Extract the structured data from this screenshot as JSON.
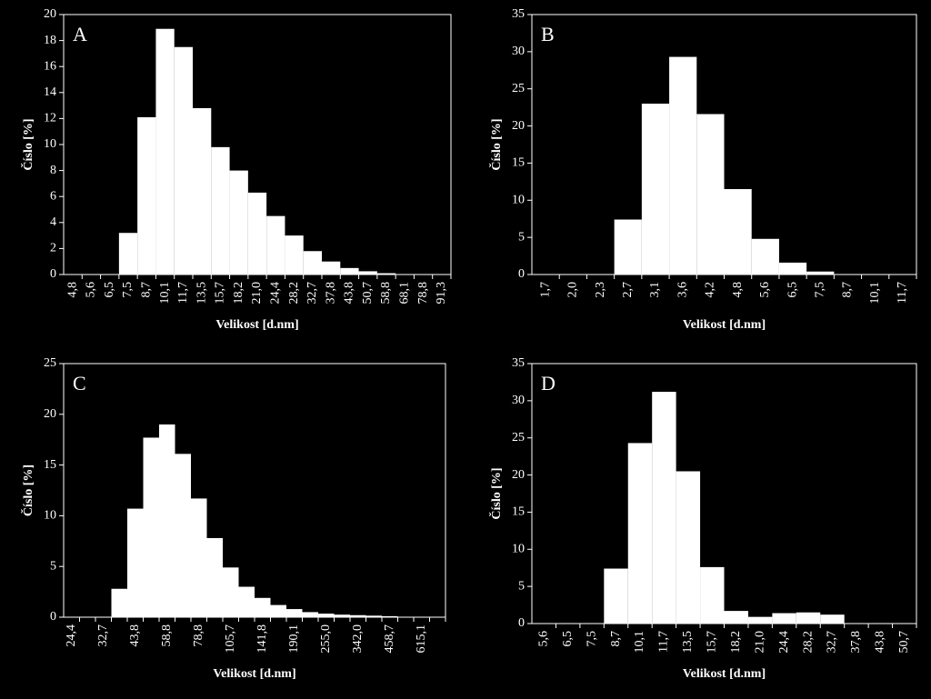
{
  "chart_data": [
    {
      "type": "bar",
      "annotation": "A",
      "ylabel": "Číslo [%]",
      "xlabel": "Velikost [d.nm]",
      "color": "#ffffff",
      "categories": [
        "4,8",
        "5,6",
        "6,5",
        "7,5",
        "8,7",
        "10,1",
        "11,7",
        "13,5",
        "15,7",
        "18,2",
        "21,0",
        "24,4",
        "28,2",
        "32,7",
        "37,8",
        "43,8",
        "50,7",
        "58,8",
        "68,1",
        "78,8",
        "91,3"
      ],
      "values": [
        0,
        0,
        0,
        3.2,
        12.1,
        18.9,
        17.5,
        12.8,
        9.8,
        8.0,
        6.3,
        4.5,
        3.0,
        1.8,
        1.0,
        0.5,
        0.25,
        0.1,
        0,
        0,
        0
      ],
      "ylim": [
        0,
        20
      ],
      "yticks": [
        0,
        2,
        4,
        6,
        8,
        10,
        12,
        14,
        16,
        18,
        20
      ]
    },
    {
      "type": "bar",
      "annotation": "B",
      "ylabel": "Číslo [%]",
      "xlabel": "Velikost [d.nm]",
      "color": "#ffffff",
      "categories": [
        "1,7",
        "2,0",
        "2,3",
        "2,7",
        "3,1",
        "3,6",
        "4,2",
        "4,8",
        "5,6",
        "6,5",
        "7,5",
        "8,7",
        "10,1",
        "11,7"
      ],
      "values": [
        0,
        0,
        0,
        7.4,
        23.0,
        29.3,
        21.6,
        11.5,
        4.8,
        1.6,
        0.4,
        0,
        0,
        0
      ],
      "ylim": [
        0,
        35
      ],
      "yticks": [
        0,
        5,
        10,
        15,
        20,
        25,
        30,
        35
      ]
    },
    {
      "type": "bar",
      "annotation": "C",
      "ylabel": "Číslo [%]",
      "xlabel": "Velikost [d.nm]",
      "color": "#ffffff",
      "categories": [
        "24,4",
        null,
        "32,7",
        null,
        "43,8",
        null,
        "58,8",
        null,
        "78,8",
        null,
        "105,7",
        null,
        "141,8",
        null,
        "190,1",
        null,
        "255,0",
        null,
        "342,0",
        null,
        "458,7",
        null,
        "615,1",
        null
      ],
      "values": [
        0,
        0,
        0,
        2.8,
        10.7,
        17.7,
        19.0,
        16.1,
        11.7,
        7.8,
        4.9,
        3.0,
        1.9,
        1.2,
        0.8,
        0.5,
        0.35,
        0.25,
        0.2,
        0.15,
        0.1,
        0,
        0,
        0
      ],
      "ylim": [
        0,
        25
      ],
      "yticks": [
        0,
        5,
        10,
        15,
        20,
        25
      ]
    },
    {
      "type": "bar",
      "annotation": "D",
      "ylabel": "Číslo [%]",
      "xlabel": "Velikost [d.nm]",
      "color": "#ffffff",
      "categories": [
        "5,6",
        "6,5",
        "7,5",
        "8,7",
        "10,1",
        "11,7",
        "13,5",
        "15,7",
        "18,2",
        "21,0",
        "24,4",
        "28,2",
        "32,7",
        "37,8",
        "43,8",
        "50,7"
      ],
      "values": [
        0,
        0,
        0,
        7.4,
        24.3,
        31.2,
        20.5,
        7.6,
        1.7,
        0.9,
        1.4,
        1.5,
        1.2,
        0,
        0,
        0
      ],
      "ylim": [
        0,
        35
      ],
      "yticks": [
        0,
        5,
        10,
        15,
        20,
        25,
        30,
        35
      ]
    }
  ]
}
